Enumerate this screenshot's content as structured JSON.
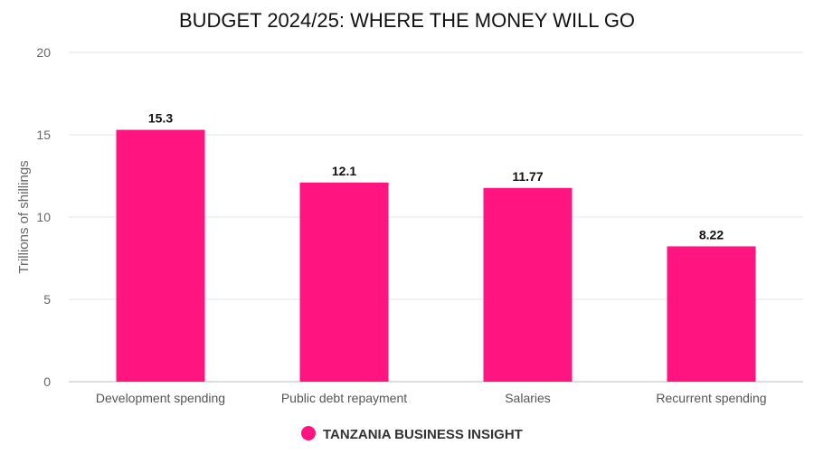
{
  "chart_data": {
    "type": "bar",
    "title": "BUDGET 2024/25: WHERE THE MONEY WILL GO",
    "xlabel": "",
    "ylabel": "Trillions of shillings",
    "categories": [
      "Development spending",
      "Public debt repayment",
      "Salaries",
      "Recurrent spending"
    ],
    "series": [
      {
        "name": "TANZANIA BUSINESS INSIGHT",
        "values": [
          15.3,
          12.1,
          11.77,
          8.22
        ],
        "data_labels": [
          "15.3",
          "12.1",
          "11.77",
          "8.22"
        ],
        "color": "#ff1480"
      }
    ],
    "ylim": [
      0,
      20
    ],
    "yticks": [
      0,
      5,
      10,
      15,
      20
    ],
    "grid": true,
    "legend_position": "bottom-center"
  }
}
